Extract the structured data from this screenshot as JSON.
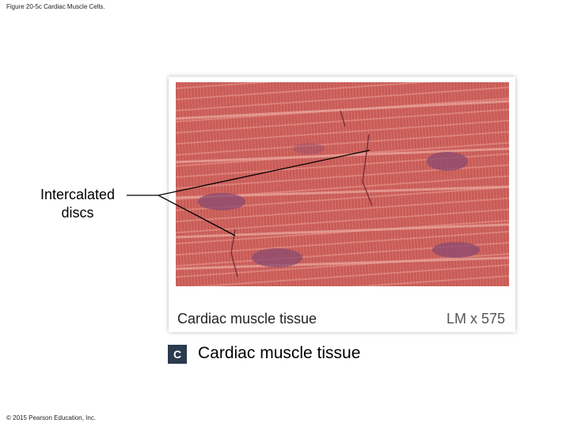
{
  "header": {
    "title": "Figure 20-5c Cardiac Muscle Cells."
  },
  "figure": {
    "label": "Intercalated discs",
    "caption": "Cardiac muscle tissue",
    "magnification": "LM x 575"
  },
  "panel": {
    "letter": "c",
    "title": "Cardiac muscle tissue"
  },
  "footer": {
    "copyright": "© 2015 Pearson Education, Inc."
  }
}
